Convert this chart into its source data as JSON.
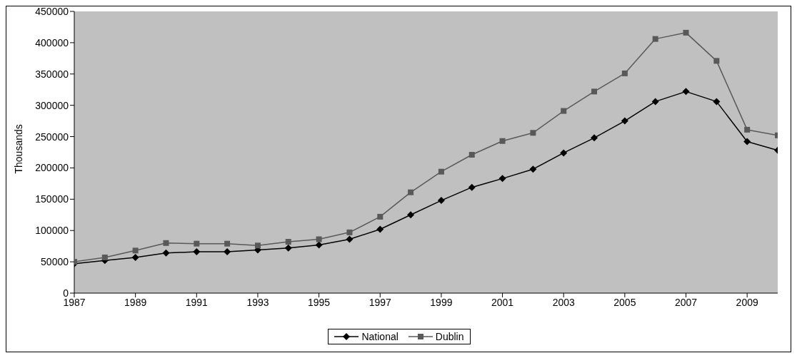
{
  "chart_data": {
    "type": "line",
    "ylabel": "Thousands",
    "x": [
      1987,
      1988,
      1989,
      1990,
      1991,
      1992,
      1993,
      1994,
      1995,
      1996,
      1997,
      1998,
      1999,
      2000,
      2001,
      2002,
      2003,
      2004,
      2005,
      2006,
      2007,
      2008,
      2009,
      2010
    ],
    "series": [
      {
        "name": "National",
        "color": "#000000",
        "marker": "diamond",
        "values": [
          47000,
          52000,
          57000,
          64000,
          66000,
          66000,
          69000,
          72000,
          77000,
          86000,
          102000,
          125000,
          148000,
          169000,
          183000,
          198000,
          224000,
          248000,
          275000,
          306000,
          322000,
          306000,
          242000,
          228000
        ]
      },
      {
        "name": "Dublin",
        "color": "#595959",
        "marker": "square",
        "values": [
          50000,
          57000,
          68000,
          80000,
          79000,
          79000,
          76000,
          82000,
          86000,
          97000,
          122000,
          161000,
          194000,
          221000,
          243000,
          256000,
          291000,
          322000,
          351000,
          406000,
          416000,
          371000,
          261000,
          252000
        ]
      }
    ],
    "xlim": [
      1987,
      2010
    ],
    "xticks": [
      1987,
      1989,
      1991,
      1993,
      1995,
      1997,
      1999,
      2001,
      2003,
      2005,
      2007,
      2009
    ],
    "ylim": [
      0,
      450000
    ],
    "yticks": [
      0,
      50000,
      100000,
      150000,
      200000,
      250000,
      300000,
      350000,
      400000,
      450000
    ],
    "grid": false,
    "legend": "bottom"
  }
}
